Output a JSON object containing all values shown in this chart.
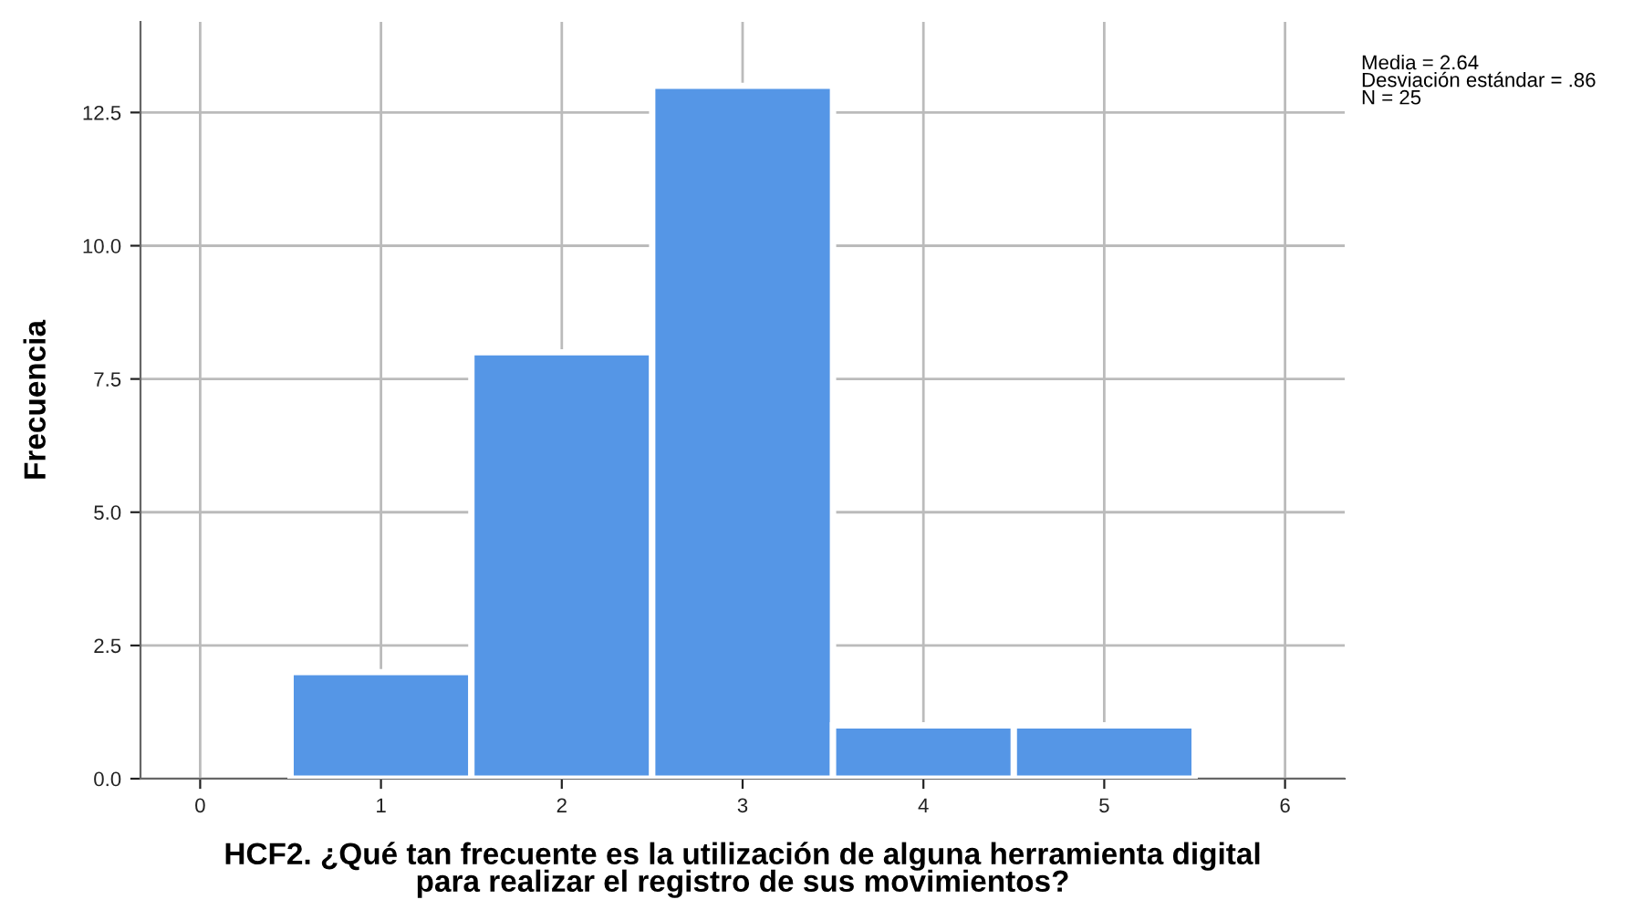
{
  "chart_data": {
    "type": "histogram",
    "xlabel": "HCF2. ¿Qué tan frecuente es la utilización de alguna herramienta digital\npara realizar el registro de sus movimientos?",
    "ylabel": "Frecuencia",
    "annotations": [
      "Media = 2.64\nDesviación estándar = .86\nN = 25"
    ],
    "bins": [
      0.5,
      1.5,
      2.5,
      3.5,
      4.5,
      5.5
    ],
    "values": [
      2,
      8,
      13,
      1,
      1
    ],
    "color": "#5596e6",
    "xlim": [
      -0.33,
      6.33
    ],
    "xticks": [
      0,
      1,
      2,
      3,
      4,
      5,
      6
    ],
    "ylim": [
      0,
      14.2
    ],
    "yticks": [
      {
        "value": 0,
        "label": "0.0"
      },
      {
        "value": 2.5,
        "label": "2.5"
      },
      {
        "value": 5,
        "label": "5.0"
      },
      {
        "value": 7.5,
        "label": "7.5"
      },
      {
        "value": 10,
        "label": "10.0"
      },
      {
        "value": 12.5,
        "label": "12.5"
      }
    ],
    "grid": true
  }
}
